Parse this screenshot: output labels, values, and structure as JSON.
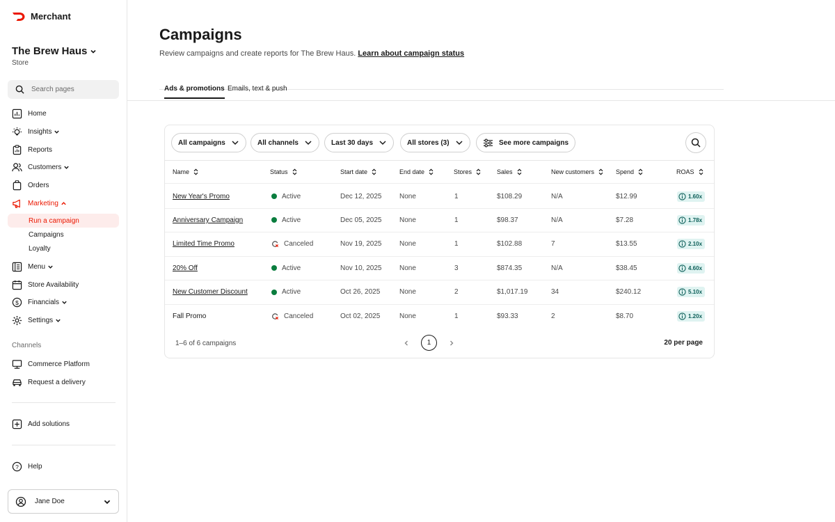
{
  "brand": {
    "name": "Merchant",
    "color": "#eb1700"
  },
  "store": {
    "name": "The Brew Haus",
    "subtitle": "Store"
  },
  "search": {
    "placeholder": "Search pages"
  },
  "nav": {
    "home": "Home",
    "insights": "Insights",
    "reports": "Reports",
    "customers": "Customers",
    "orders": "Orders",
    "marketing": "Marketing",
    "marketing_sub": [
      "Run a campaign",
      "Campaigns",
      "Loyalty"
    ],
    "menu": "Menu",
    "store_availability": "Store Availability",
    "financials": "Financials",
    "settings": "Settings",
    "channels_label": "Channels",
    "commerce_platform": "Commerce Platform",
    "request_delivery": "Request a delivery",
    "add_solutions": "Add solutions",
    "help": "Help"
  },
  "user": {
    "name": "Jane Doe"
  },
  "page": {
    "title": "Campaigns",
    "description": "Review campaigns and create reports for The Brew Haus.",
    "learn_link": "Learn about campaign status",
    "tabs": [
      "Ads & promotions",
      "Emails, text & push"
    ]
  },
  "filters": {
    "campaigns": "All campaigns",
    "channels": "All channels",
    "range": "Last 30 days",
    "stores": "All stores (3)",
    "more": "See more campaigns"
  },
  "table": {
    "headers": [
      "Name",
      "Status",
      "Start date",
      "End date",
      "Stores",
      "Sales",
      "New customers",
      "Spend",
      "ROAS"
    ],
    "rows": [
      {
        "name": "New Year's Promo",
        "status": "Active",
        "start": "Dec 12, 2025",
        "end": "None",
        "stores": "1",
        "sales": "$108.29",
        "new_customers": "N/A",
        "spend": "$12.99",
        "roas": "1.60x"
      },
      {
        "name": "Anniversary Campaign",
        "status": "Active",
        "start": "Dec 05, 2025",
        "end": "None",
        "stores": "1",
        "sales": "$98.37",
        "new_customers": "N/A",
        "spend": "$7.28",
        "roas": "1.78x"
      },
      {
        "name": "Limited Time Promo",
        "status": "Canceled",
        "start": "Nov 19, 2025",
        "end": "None",
        "stores": "1",
        "sales": "$102.88",
        "new_customers": "7",
        "spend": "$13.55",
        "roas": "2.10x"
      },
      {
        "name": "20% Off",
        "status": "Active",
        "start": "Nov 10, 2025",
        "end": "None",
        "stores": "3",
        "sales": "$874.35",
        "new_customers": "N/A",
        "spend": "$38.45",
        "roas": "4.60x"
      },
      {
        "name": "New Customer Discount",
        "status": "Active",
        "start": "Oct 26, 2025",
        "end": "None",
        "stores": "2",
        "sales": "$1,017.19",
        "new_customers": "34",
        "spend": "$240.12",
        "roas": "5.10x"
      },
      {
        "name": "Fall Promo",
        "status": "Canceled",
        "start": "Oct 02, 2025",
        "end": "None",
        "stores": "1",
        "sales": "$93.33",
        "new_customers": "2",
        "spend": "$8.70",
        "roas": "1.20x"
      }
    ],
    "summary": "1–6 of 6 campaigns",
    "current_page": "1",
    "per_page": "20 per page"
  },
  "colors": {
    "active": "#0a7d3e",
    "roas_bg": "#dff3f1",
    "roas_text": "#0d5f59",
    "accent": "#eb1700"
  }
}
